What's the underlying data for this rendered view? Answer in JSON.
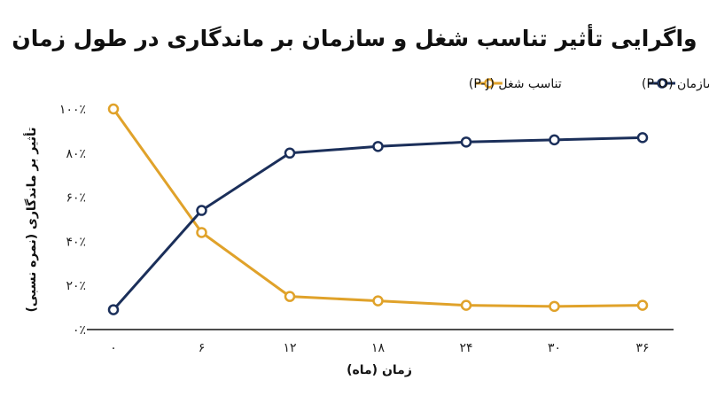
{
  "chart_data": {
    "type": "line",
    "title": "واگرایی تأثیر تناسب شغل و سازمان بر ماندگاری در طول زمان",
    "xlabel": "زمان (ماه)",
    "ylabel": "تأثیر بر ماندگاری (نمره نسبی)",
    "x": [
      0,
      6,
      12,
      18,
      24,
      30,
      36
    ],
    "x_tick_labels": [
      "۰",
      "۶",
      "۱۲",
      "۱۸",
      "۲۴",
      "۳۰",
      "۳۶"
    ],
    "y_tick_labels": [
      "۰٪",
      "۲۰٪",
      "۴۰٪",
      "۶۰٪",
      "۸۰٪",
      "۱۰۰٪"
    ],
    "ylim": [
      0,
      100
    ],
    "grid": false,
    "legend_position": "top-right",
    "series": [
      {
        "name": "تناسب سازمان (P-O)",
        "color": "#1b2f5a",
        "values": [
          9,
          54,
          80,
          83,
          85,
          86,
          87
        ]
      },
      {
        "name": "تناسب شغل (P-J)",
        "color": "#e0a22a",
        "values": [
          100,
          44,
          15,
          13,
          11,
          10.5,
          11
        ]
      }
    ]
  }
}
